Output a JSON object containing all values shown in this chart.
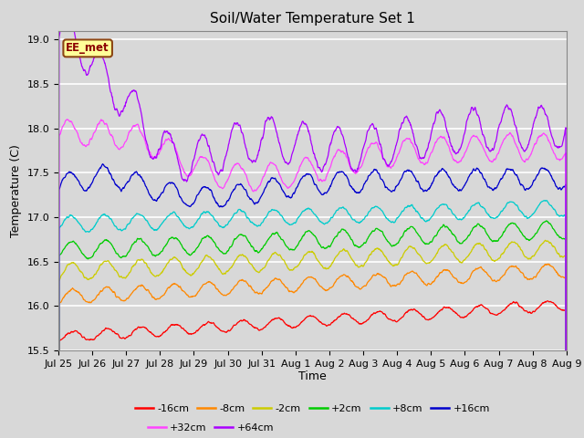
{
  "title": "Soil/Water Temperature Set 1",
  "xlabel": "Time",
  "ylabel": "Temperature (C)",
  "ylim": [
    15.5,
    19.1
  ],
  "annotation_text": "EE_met",
  "background_color": "#d8d8d8",
  "plot_bg_color": "#d8d8d8",
  "series": {
    "-16cm": {
      "color": "#ff0000"
    },
    "-8cm": {
      "color": "#ff8800"
    },
    "-2cm": {
      "color": "#cccc00"
    },
    "+2cm": {
      "color": "#00cc00"
    },
    "+8cm": {
      "color": "#00cccc"
    },
    "+16cm": {
      "color": "#0000cc"
    },
    "+32cm": {
      "color": "#ff44ff"
    },
    "+64cm": {
      "color": "#aa00ff"
    }
  },
  "tick_labels": [
    "Jul 25",
    "Jul 26",
    "Jul 27",
    "Jul 28",
    "Jul 29",
    "Jul 30",
    "Jul 31",
    "Aug 1",
    "Aug 2",
    "Aug 3",
    "Aug 4",
    "Aug 5",
    "Aug 6",
    "Aug 7",
    "Aug 8",
    "Aug 9"
  ],
  "legend_order": [
    "-16cm",
    "-8cm",
    "-2cm",
    "+2cm",
    "+8cm",
    "+16cm",
    "+32cm",
    "+64cm"
  ],
  "days_total": 15,
  "n_points": 1440
}
